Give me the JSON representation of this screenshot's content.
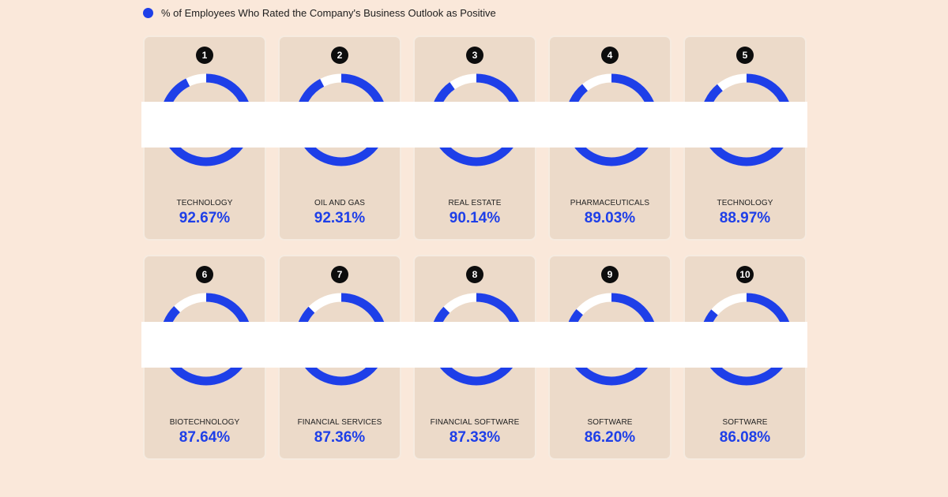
{
  "legend": {
    "label": "% of Employees Who Rated the Company's Business Outlook as Positive",
    "color": "#1e3fe8"
  },
  "colors": {
    "accent": "#1e3fe8",
    "remainder": "#ffffff",
    "card_bg": "#ecdac9",
    "page_bg": "#fae8da"
  },
  "chart_data": {
    "type": "pie",
    "categories": [
      "TECHNOLOGY",
      "OIL AND GAS",
      "REAL ESTATE",
      "PHARMACEUTICALS",
      "TECHNOLOGY",
      "BIOTECHNOLOGY",
      "FINANCIAL SERVICES",
      "FINANCIAL SOFTWARE",
      "SOFTWARE",
      "SOFTWARE"
    ],
    "ranks": [
      "1",
      "2",
      "3",
      "4",
      "5",
      "6",
      "7",
      "8",
      "9",
      "10"
    ],
    "values": [
      92.67,
      92.31,
      90.14,
      89.03,
      88.97,
      87.64,
      87.36,
      87.33,
      86.2,
      86.08
    ],
    "labels": [
      "92.67%",
      "92.31%",
      "90.14%",
      "89.03%",
      "88.97%",
      "87.64%",
      "87.36%",
      "87.33%",
      "86.20%",
      "86.08%"
    ],
    "series": [
      {
        "name": "% of Employees Who Rated the Company's Business Outlook as Positive",
        "values": [
          92.67,
          92.31,
          90.14,
          89.03,
          88.97,
          87.64,
          87.36,
          87.33,
          86.2,
          86.08
        ]
      }
    ]
  }
}
